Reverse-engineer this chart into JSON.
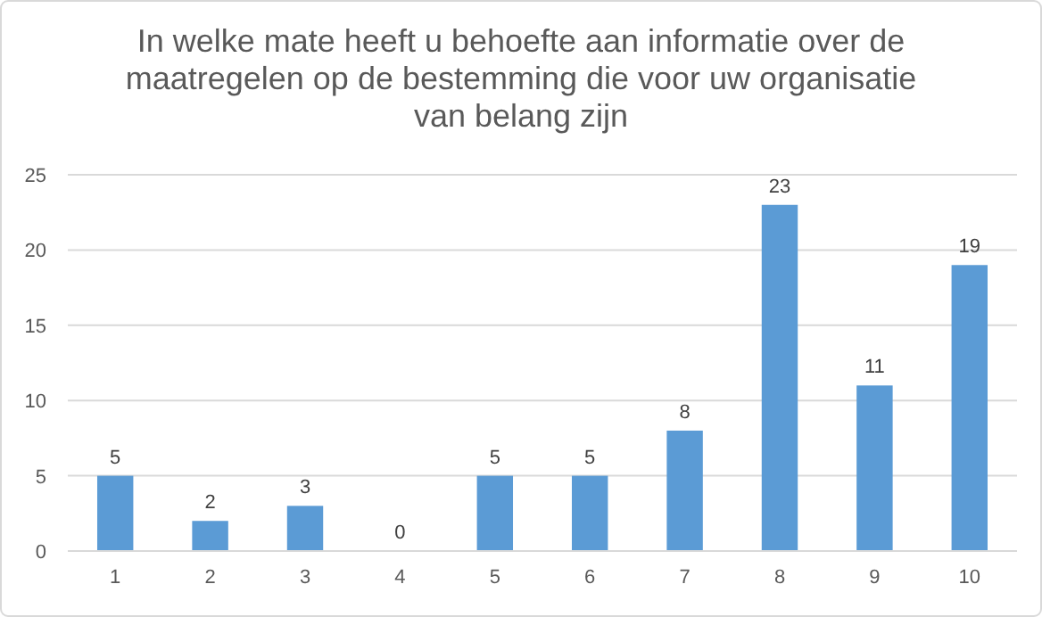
{
  "chart_data": {
    "type": "bar",
    "title": "In welke mate heeft u behoefte aan informatie over de\nmaatregelen op de bestemming die voor uw organisatie\nvan belang zijn",
    "categories": [
      "1",
      "2",
      "3",
      "4",
      "5",
      "6",
      "7",
      "8",
      "9",
      "10"
    ],
    "values": [
      5,
      2,
      3,
      0,
      5,
      5,
      8,
      23,
      11,
      19
    ],
    "color": "#5b9bd5",
    "ylim": [
      0,
      25
    ],
    "yticks": [
      0,
      5,
      10,
      15,
      20,
      25
    ],
    "grid": "y",
    "data_labels": true
  }
}
